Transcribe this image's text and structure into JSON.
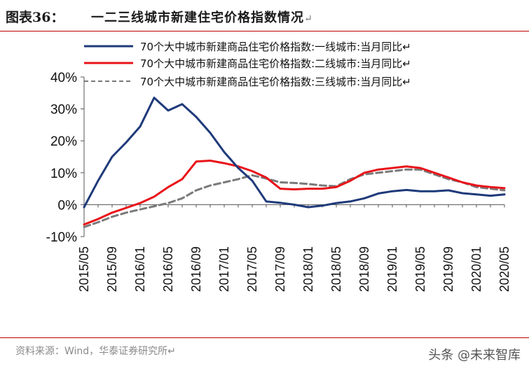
{
  "header": {
    "figure_label": "图表36：",
    "title": "一二三线城市新建住宅价格指数情况",
    "title_mark": "↵"
  },
  "footer": {
    "source": "资料来源：Wind，华泰证券研究所↵",
    "watermark": "头条 @未来智库"
  },
  "chart_data": {
    "type": "line",
    "ylim": [
      -10,
      40
    ],
    "yticks": [
      -10,
      0,
      10,
      20,
      30,
      40
    ],
    "ytick_labels": [
      "-10%",
      "0%",
      "10%",
      "20%",
      "30%",
      "40%"
    ],
    "grid": false,
    "legend_position": "top",
    "x": [
      "2015/05",
      "2015/07",
      "2015/09",
      "2015/11",
      "2016/01",
      "2016/03",
      "2016/05",
      "2016/07",
      "2016/09",
      "2016/11",
      "2017/01",
      "2017/03",
      "2017/05",
      "2017/07",
      "2017/09",
      "2017/11",
      "2018/01",
      "2018/03",
      "2018/05",
      "2018/07",
      "2018/09",
      "2018/11",
      "2019/01",
      "2019/03",
      "2019/05",
      "2019/07",
      "2019/09",
      "2019/11",
      "2020/01",
      "2020/03",
      "2020/05"
    ],
    "xtick_labels": [
      "2015/05",
      "2015/09",
      "2016/01",
      "2016/05",
      "2016/09",
      "2017/01",
      "2017/05",
      "2017/09",
      "2018/01",
      "2018/05",
      "2018/09",
      "2019/01",
      "2019/05",
      "2019/09",
      "2020/01",
      "2020/05"
    ],
    "series": [
      {
        "name": "70个大中城市新建商品住宅价格指数:一线城市:当月同比↵",
        "color": "#1f3a7a",
        "style": "solid",
        "values": [
          -0.8,
          7.5,
          15.0,
          19.5,
          24.5,
          33.5,
          29.5,
          31.5,
          27.5,
          22.5,
          16.5,
          11.5,
          7.5,
          1.0,
          0.6,
          0.0,
          -0.8,
          -0.3,
          0.5,
          1.0,
          2.0,
          3.5,
          4.2,
          4.6,
          4.2,
          4.2,
          4.5,
          3.6,
          3.2,
          2.8,
          3.2
        ]
      },
      {
        "name": "70个大中城市新建商品住宅价格指数:二线城市:当月同比↵",
        "color": "#e8141a",
        "style": "solid",
        "values": [
          -6.2,
          -4.5,
          -2.5,
          -1.0,
          0.5,
          2.5,
          5.5,
          8.0,
          13.5,
          13.8,
          13.0,
          12.0,
          10.5,
          8.5,
          5.0,
          4.8,
          5.0,
          5.0,
          5.5,
          7.5,
          10.0,
          11.0,
          11.5,
          12.0,
          11.5,
          10.0,
          8.5,
          7.0,
          6.0,
          5.5,
          5.2
        ]
      },
      {
        "name": "70个大中城市新建商品住宅价格指数:三线城市:当月同比↵",
        "color": "#7a7a7a",
        "style": "dashed",
        "values": [
          -7.0,
          -5.5,
          -3.8,
          -2.5,
          -1.5,
          -0.5,
          0.5,
          2.0,
          4.5,
          6.0,
          7.0,
          8.0,
          9.2,
          8.2,
          7.0,
          6.8,
          6.5,
          6.0,
          5.8,
          8.0,
          9.5,
          10.0,
          10.5,
          11.0,
          11.0,
          9.5,
          8.0,
          7.0,
          5.5,
          5.0,
          4.5
        ]
      }
    ]
  }
}
